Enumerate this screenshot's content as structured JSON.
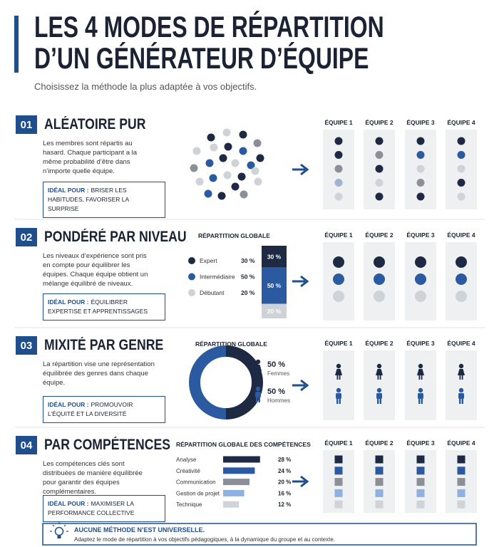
{
  "header": {
    "title_line1": "LES 4 MODES DE RÉPARTITION",
    "title_line2": "D’UN GÉNÉRATEUR D’ÉQUIPE",
    "subtitle": "Choisissez la méthode la plus adaptée à vos objectifs."
  },
  "team_labels": [
    "ÉQUIPE 1",
    "ÉQUIPE 2",
    "ÉQUIPE 3",
    "ÉQUIPE 4"
  ],
  "sections": [
    {
      "number": "01",
      "title": "ALÉATOIRE PUR",
      "description": "Les membres sont répartis au hasard. Chaque participant a la même probabilité d’être dans n’importe quelle équipe.",
      "ideal_label": "IDÉAL POUR :",
      "ideal_text": "BRISER LES HABITUDES, FAVORISER LA SURPRISE"
    },
    {
      "number": "02",
      "title": "PONDÉRÉ PAR NIVEAU",
      "description": "Les niveaux d’expérience sont pris en compte pour équilibrer les équipes. Chaque équipe obtient un mélange équilibré de niveaux.",
      "ideal_label": "IDÉAL POUR :",
      "ideal_text": "ÉQUILIBRER EXPERTISE ET APPRENTISSAGES",
      "distribution": {
        "title": "RÉPARTITION GLOBALE",
        "items": [
          {
            "name": "Expert",
            "value": 30,
            "label": "30 %",
            "color": "#1e2a44"
          },
          {
            "name": "Intermédiaire",
            "value": 50,
            "label": "50 %",
            "color": "#2b5aa0"
          },
          {
            "name": "Débutant",
            "value": 20,
            "label": "20 %",
            "color": "#cfd2d6"
          }
        ]
      }
    },
    {
      "number": "03",
      "title": "MIXITÉ PAR GENRE",
      "description": "La répartition vise une représentation équilibrée des genres dans chaque équipe.",
      "ideal_label": "IDÉAL POUR :",
      "ideal_text": "PROMOUVOIR L’ÉQUITÉ ET LA DIVERSITÉ",
      "distribution": {
        "title": "RÉPARTITION GLOBALE",
        "items": [
          {
            "name": "Femmes",
            "value": 50,
            "label": "50 %",
            "color": "#1e2a44"
          },
          {
            "name": "Hommes",
            "value": 50,
            "label": "50 %",
            "color": "#2b5aa0"
          }
        ]
      }
    },
    {
      "number": "04",
      "title": "PAR COMPÉTENCES",
      "description": "Les compétences clés sont distribuées de manière équilibrée pour garantir des équipes complémentaires.",
      "ideal_label": "IDÉAL POUR :",
      "ideal_text": "MAXIMISER LA PERFORMANCE COLLECTIVE",
      "distribution": {
        "title": "RÉPARTITION GLOBALE DES COMPÉTENCES",
        "items": [
          {
            "name": "Analyse",
            "value": 28,
            "label": "28 %",
            "color": "#1e2a44"
          },
          {
            "name": "Créativité",
            "value": 24,
            "label": "24 %",
            "color": "#2b5aa0"
          },
          {
            "name": "Communication",
            "value": 20,
            "label": "20 %",
            "color": "#8a8f98"
          },
          {
            "name": "Gestion de projet",
            "value": 16,
            "label": "16 %",
            "color": "#8fb0e0"
          },
          {
            "name": "Technique",
            "value": 12,
            "label": "12 %",
            "color": "#d0d3d8"
          }
        ]
      }
    }
  ],
  "footer": {
    "title": "AUCUNE MÉTHODE N’EST UNIVERSELLE.",
    "text": "Adaptez le mode de répartition à vos objectifs pédagogiques, à la dynamique du groupe et au contexte."
  }
}
